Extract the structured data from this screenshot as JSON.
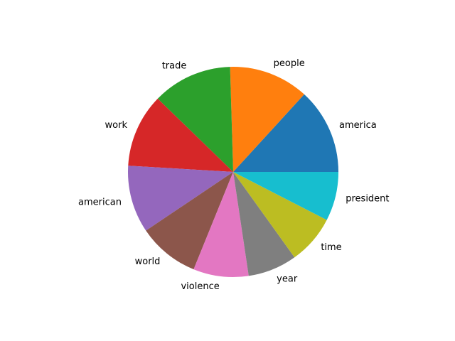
{
  "chart_data": {
    "type": "pie",
    "title": "",
    "categories": [
      "america",
      "people",
      "trade",
      "work",
      "american",
      "world",
      "violence",
      "year",
      "time",
      "president"
    ],
    "values": [
      14,
      13,
      13,
      12,
      11,
      10,
      9,
      8,
      8,
      8
    ],
    "colors": [
      "#1f77b4",
      "#ff7f0e",
      "#2ca02c",
      "#d62728",
      "#9467bd",
      "#8c564b",
      "#e377c2",
      "#7f7f7f",
      "#bcbd22",
      "#17becf"
    ],
    "start_angle_deg": 0,
    "direction": "counterclockwise"
  }
}
